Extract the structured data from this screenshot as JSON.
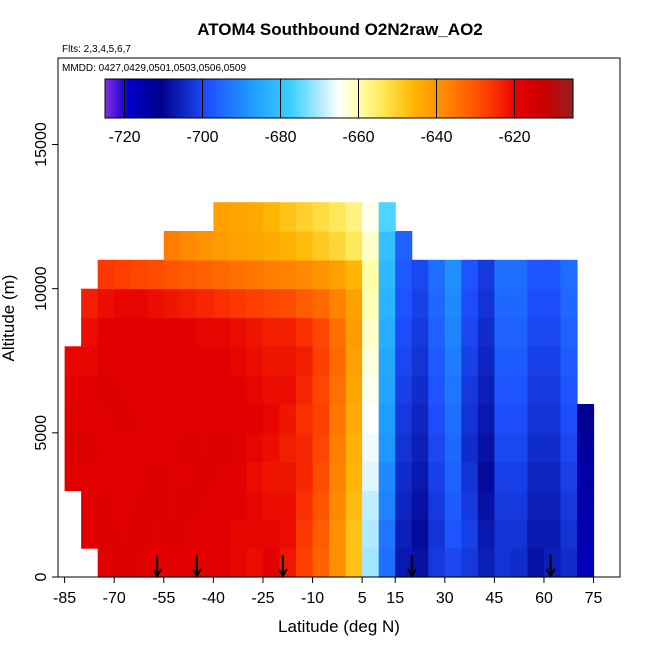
{
  "chart_data": {
    "type": "heatmap",
    "title": "ATOM4 Southbound O2N2raw_AO2",
    "flights_label": "Flts: 2,3,4,5,6,7",
    "dates_label": "MMDD: 0427,0429,0501,0503,0506,0509",
    "xlabel": "Latitude (deg N)",
    "ylabel": "Altitude (m)",
    "xlim": [
      -87,
      83
    ],
    "ylim": [
      0,
      18000
    ],
    "x_ticks": [
      -85,
      -70,
      -55,
      -40,
      -25,
      -10,
      5,
      15,
      30,
      45,
      60,
      75
    ],
    "x_tick_labels": [
      "-85",
      "-70",
      "-55",
      "-40",
      "-25",
      "-10",
      "5",
      "15",
      "30",
      "45",
      "60",
      "75"
    ],
    "y_ticks": [
      0,
      5000,
      10000,
      15000
    ],
    "y_tick_labels": [
      "0",
      "5000",
      "10000",
      "15000"
    ],
    "colorbar": {
      "range": [
        -725,
        -605
      ],
      "ticks": [
        -720,
        -700,
        -680,
        -660,
        -640,
        -620
      ],
      "tick_labels": [
        "-720",
        "-700",
        "-680",
        "-660",
        "-640",
        "-620"
      ],
      "colors": [
        "#8a2be2",
        "#0000c8",
        "#00008b",
        "#1e50ff",
        "#1fa0ff",
        "#3cd2ff",
        "#b4eaff",
        "#ffffff",
        "#ffffaa",
        "#ffe44d",
        "#ffb400",
        "#ff7f00",
        "#ff3c00",
        "#e60000",
        "#c80000",
        "#962020"
      ],
      "color_stops": [
        0,
        0.05,
        0.12,
        0.22,
        0.32,
        0.4,
        0.46,
        0.5,
        0.54,
        0.6,
        0.66,
        0.74,
        0.82,
        0.88,
        0.94,
        1
      ]
    },
    "latitude_bins": [
      -82.5,
      -77.5,
      -72.5,
      -67.5,
      -62.5,
      -57.5,
      -52.5,
      -47.5,
      -42.5,
      -37.5,
      -32.5,
      -27.5,
      -22.5,
      -17.5,
      -12.5,
      -7.5,
      -2.5,
      2.5,
      7.5,
      12.5,
      17.5,
      22.5,
      27.5,
      32.5,
      37.5,
      42.5,
      47.5,
      52.5,
      57.5,
      62.5,
      67.5,
      72.5
    ],
    "altitude_bins": [
      500,
      1500,
      2500,
      3500,
      4500,
      5500,
      6500,
      7500,
      8500,
      9500,
      10500,
      11500,
      12500
    ],
    "values_by_altitude": [
      [
        null,
        null,
        -618,
        -617,
        -618,
        -619,
        -618,
        -618,
        -619,
        -618,
        -620,
        -621,
        -619,
        -622,
        -627,
        -632,
        -639,
        -648,
        -671,
        -694,
        -707,
        -708,
        -702,
        -700,
        -702,
        -706,
        -703,
        -704,
        -708,
        -706,
        -704,
        -717
      ],
      [
        null,
        -619,
        -617,
        -618,
        -617,
        -618,
        -617,
        -618,
        -619,
        -619,
        -620,
        -620,
        -620,
        -621,
        -626,
        -631,
        -639,
        -648,
        -670,
        -693,
        -706,
        -709,
        -703,
        -698,
        -701,
        -707,
        -703,
        -703,
        -707,
        -707,
        -703,
        -716
      ],
      [
        null,
        -619,
        -617,
        -619,
        -617,
        -617,
        -618,
        -617,
        -618,
        -619,
        -619,
        -620,
        -621,
        -621,
        -625,
        -630,
        -638,
        -647,
        -669,
        -691,
        -705,
        -708,
        -702,
        -697,
        -702,
        -708,
        -702,
        -702,
        -706,
        -706,
        -702,
        -715
      ],
      [
        -618,
        -618,
        -619,
        -619,
        -618,
        -617,
        -618,
        -618,
        -617,
        -618,
        -619,
        -621,
        -622,
        -622,
        -624,
        -629,
        -637,
        -646,
        -667,
        -690,
        -704,
        -707,
        -701,
        -696,
        -703,
        -709,
        -701,
        -701,
        -705,
        -705,
        -701,
        -714
      ],
      [
        -617,
        -617,
        -618,
        -618,
        -618,
        -618,
        -618,
        -617,
        -618,
        -617,
        -618,
        -620,
        -621,
        -623,
        -624,
        -628,
        -636,
        -645,
        -666,
        -688,
        -703,
        -706,
        -700,
        -695,
        -704,
        -708,
        -700,
        -700,
        -704,
        -704,
        -700,
        -713
      ],
      [
        -618,
        -619,
        -618,
        -617,
        -618,
        -619,
        -619,
        -618,
        -618,
        -618,
        -618,
        -619,
        -620,
        -622,
        -625,
        -627,
        -635,
        -644,
        -665,
        -687,
        -702,
        -705,
        -699,
        -694,
        -703,
        -707,
        -699,
        -699,
        -703,
        -703,
        -699,
        -712
      ],
      [
        -619,
        -619,
        -617,
        -618,
        -619,
        -619,
        -618,
        -619,
        -618,
        -619,
        -619,
        -620,
        -621,
        -621,
        -624,
        -628,
        -634,
        -643,
        -664,
        -686,
        -701,
        -704,
        -698,
        -693,
        -702,
        -706,
        -698,
        -698,
        -702,
        -702,
        -698,
        null
      ],
      [
        -620,
        -620,
        -618,
        -619,
        -618,
        -618,
        -618,
        -618,
        -619,
        -619,
        -620,
        -621,
        -622,
        -622,
        -623,
        -627,
        -633,
        -642,
        -663,
        -685,
        -700,
        -703,
        -697,
        -692,
        -701,
        -705,
        -697,
        -697,
        -701,
        -701,
        -697,
        null
      ],
      [
        null,
        -621,
        -619,
        -618,
        -618,
        -619,
        -619,
        -619,
        -620,
        -620,
        -621,
        -622,
        -623,
        -623,
        -625,
        -628,
        -634,
        -641,
        -662,
        -684,
        -699,
        -702,
        -696,
        -691,
        -700,
        -704,
        -696,
        -696,
        -700,
        -700,
        -696,
        null
      ],
      [
        null,
        -623,
        -621,
        -620,
        -620,
        -621,
        -622,
        -623,
        -624,
        -625,
        -626,
        -627,
        -628,
        -629,
        -631,
        -633,
        -637,
        -642,
        -661,
        -683,
        -698,
        -701,
        -695,
        -690,
        -699,
        -703,
        -695,
        -695,
        -699,
        -699,
        -695,
        null
      ],
      [
        null,
        null,
        -626,
        -627,
        -628,
        -629,
        -630,
        -631,
        -632,
        -633,
        -634,
        -635,
        -636,
        -637,
        -638,
        -640,
        -642,
        -646,
        -660,
        -682,
        -697,
        -700,
        -694,
        -689,
        -698,
        -702,
        -694,
        -694,
        -698,
        -698,
        -694,
        null
      ],
      [
        null,
        null,
        null,
        null,
        null,
        null,
        -636,
        -638,
        -640,
        -641,
        -642,
        -643,
        -644,
        -645,
        -647,
        -649,
        -651,
        -654,
        -662,
        -680,
        -696,
        null,
        null,
        null,
        null,
        null,
        null,
        null,
        null,
        null,
        null,
        null
      ],
      [
        null,
        null,
        null,
        null,
        null,
        null,
        null,
        null,
        null,
        -642,
        -643,
        -644,
        -646,
        -648,
        -650,
        -652,
        -654,
        -657,
        -664,
        -676,
        null,
        null,
        null,
        null,
        null,
        null,
        null,
        null,
        null,
        null,
        null,
        null
      ]
    ],
    "profile_markers_lat": [
      -57,
      -45,
      -19,
      20,
      62
    ]
  }
}
